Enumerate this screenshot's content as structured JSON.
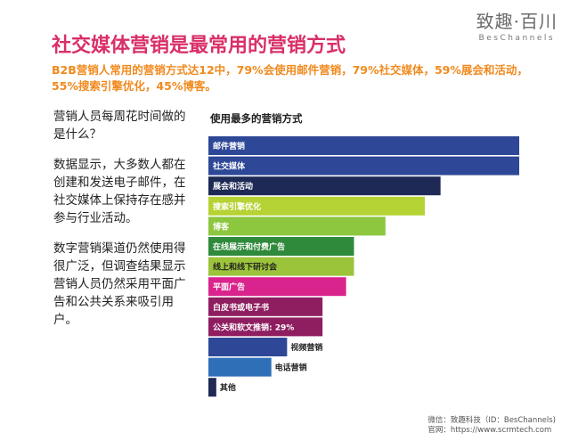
{
  "logo": {
    "cn": "致趣·百川",
    "en": "BesChannels"
  },
  "title": "社交媒体营销是最常用的营销方式",
  "summary": "B2B营销人常用的营销方式达12中，79%会使用邮件营销，79%社交媒体，59%展会和活动，55%搜索引擎优化，45%博客。",
  "left_text": [
    "营销人员每周花时间做的是什么？",
    "数据显示，大多数人都在创建和发送电子邮件，在社交媒体上保持存在感并参与行业活动。",
    "数字营销渠道仍然使用得很广泛，但调查结果显示营销人员仍然采用平面广告和公共关系来吸引用户。"
  ],
  "footer": {
    "wechat": "微信：致趣科技（ID：BesChannels)",
    "website": "官网：https://www.scrmtech.com"
  },
  "chart_data": {
    "type": "bar",
    "orientation": "horizontal",
    "title": "使用最多的营销方式",
    "categories": [
      "邮件营销",
      "社交媒体",
      "展会和活动",
      "搜索引擎优化",
      "博客",
      "在线展示和付费广告",
      "线上和线下研讨会",
      "平面广告",
      "白皮书或电子书",
      "公关和软文推销: 29%",
      "视频营销",
      "电话营销",
      "其他"
    ],
    "values": [
      79,
      79,
      59,
      55,
      45,
      37,
      37,
      35,
      29,
      29,
      20,
      16,
      2
    ],
    "colors": [
      "#2e4897",
      "#2e4897",
      "#1e2a55",
      "#b5d334",
      "#8dc63f",
      "#2f8a3c",
      "#9bc43a",
      "#d9248d",
      "#8f1e61",
      "#8f1e61",
      "#2e4897",
      "#2e6fb8",
      "#1e2a55"
    ],
    "label_colors": [
      "#ffffff",
      "#ffffff",
      "#ffffff",
      "#ffffff",
      "#ffffff",
      "#ffffff",
      "#222222",
      "#ffffff",
      "#ffffff",
      "#ffffff",
      "#222222",
      "#222222",
      "#222222"
    ],
    "grid": false,
    "legend": "none"
  }
}
